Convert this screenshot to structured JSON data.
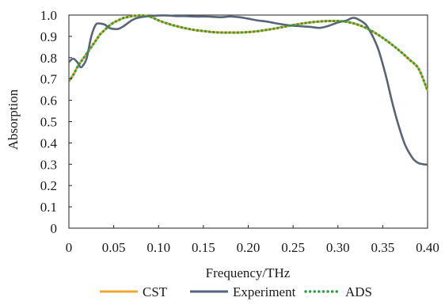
{
  "chart_data": {
    "type": "line",
    "title": "",
    "xlabel": "Frequency/THz",
    "ylabel": "Absorption",
    "xlim": [
      0,
      0.4
    ],
    "ylim": [
      0,
      1.0
    ],
    "x_ticks": [
      "0",
      "0.05",
      "0.10",
      "0.15",
      "0.20",
      "0.25",
      "0.30",
      "0.35",
      "0.40"
    ],
    "y_ticks": [
      "0",
      "0.1",
      "0.2",
      "0.3",
      "0.4",
      "0.5",
      "0.6",
      "0.7",
      "0.8",
      "0.9",
      "1.0"
    ],
    "grid": false,
    "legend_position": "bottom",
    "series": [
      {
        "name": "CST",
        "color": "#f0a830",
        "style": "solid",
        "x": [
          0,
          0.005,
          0.01,
          0.015,
          0.02,
          0.025,
          0.03,
          0.035,
          0.04,
          0.045,
          0.05,
          0.055,
          0.06,
          0.065,
          0.07,
          0.075,
          0.08,
          0.085,
          0.09,
          0.095,
          0.1,
          0.11,
          0.12,
          0.13,
          0.14,
          0.15,
          0.16,
          0.17,
          0.18,
          0.19,
          0.2,
          0.21,
          0.22,
          0.23,
          0.24,
          0.25,
          0.26,
          0.27,
          0.28,
          0.29,
          0.3,
          0.31,
          0.32,
          0.33,
          0.34,
          0.35,
          0.36,
          0.37,
          0.38,
          0.39,
          0.4
        ],
        "y": [
          0.69,
          0.72,
          0.76,
          0.79,
          0.82,
          0.85,
          0.88,
          0.91,
          0.93,
          0.95,
          0.965,
          0.975,
          0.985,
          0.99,
          0.995,
          0.997,
          0.998,
          0.997,
          0.993,
          0.985,
          0.975,
          0.96,
          0.948,
          0.938,
          0.93,
          0.925,
          0.92,
          0.918,
          0.918,
          0.918,
          0.92,
          0.924,
          0.93,
          0.937,
          0.945,
          0.953,
          0.96,
          0.966,
          0.97,
          0.972,
          0.972,
          0.968,
          0.958,
          0.942,
          0.92,
          0.893,
          0.862,
          0.828,
          0.79,
          0.748,
          0.645
        ]
      },
      {
        "name": "Experiment",
        "color": "#5a6478",
        "style": "solid",
        "x": [
          0,
          0.005,
          0.01,
          0.013,
          0.016,
          0.02,
          0.025,
          0.03,
          0.035,
          0.04,
          0.045,
          0.05,
          0.055,
          0.06,
          0.065,
          0.07,
          0.075,
          0.08,
          0.09,
          0.1,
          0.11,
          0.12,
          0.13,
          0.14,
          0.15,
          0.16,
          0.17,
          0.18,
          0.19,
          0.2,
          0.21,
          0.22,
          0.23,
          0.24,
          0.25,
          0.26,
          0.27,
          0.28,
          0.29,
          0.3,
          0.31,
          0.315,
          0.32,
          0.33,
          0.335,
          0.34,
          0.345,
          0.35,
          0.355,
          0.36,
          0.365,
          0.37,
          0.375,
          0.38,
          0.385,
          0.39,
          0.395,
          0.4
        ],
        "y": [
          0.78,
          0.795,
          0.775,
          0.755,
          0.765,
          0.8,
          0.9,
          0.955,
          0.96,
          0.955,
          0.94,
          0.935,
          0.935,
          0.945,
          0.96,
          0.975,
          0.985,
          0.99,
          0.995,
          0.998,
          0.998,
          0.995,
          0.995,
          0.993,
          0.993,
          0.992,
          0.99,
          0.993,
          0.99,
          0.983,
          0.975,
          0.97,
          0.962,
          0.955,
          0.95,
          0.947,
          0.944,
          0.94,
          0.95,
          0.965,
          0.975,
          0.985,
          0.985,
          0.96,
          0.93,
          0.89,
          0.84,
          0.77,
          0.69,
          0.6,
          0.52,
          0.45,
          0.39,
          0.35,
          0.32,
          0.305,
          0.3,
          0.298
        ]
      },
      {
        "name": "ADS",
        "color": "#2e9e45",
        "style": "dotted",
        "x": [
          0,
          0.005,
          0.01,
          0.015,
          0.02,
          0.025,
          0.03,
          0.035,
          0.04,
          0.045,
          0.05,
          0.055,
          0.06,
          0.065,
          0.07,
          0.075,
          0.08,
          0.085,
          0.09,
          0.095,
          0.1,
          0.11,
          0.12,
          0.13,
          0.14,
          0.15,
          0.16,
          0.17,
          0.18,
          0.19,
          0.2,
          0.21,
          0.22,
          0.23,
          0.24,
          0.25,
          0.26,
          0.27,
          0.28,
          0.29,
          0.3,
          0.31,
          0.32,
          0.33,
          0.34,
          0.35,
          0.36,
          0.37,
          0.38,
          0.39,
          0.4
        ],
        "y": [
          0.69,
          0.72,
          0.76,
          0.79,
          0.82,
          0.85,
          0.88,
          0.91,
          0.93,
          0.95,
          0.965,
          0.975,
          0.985,
          0.99,
          0.995,
          0.997,
          0.998,
          0.997,
          0.993,
          0.985,
          0.975,
          0.96,
          0.948,
          0.938,
          0.93,
          0.925,
          0.92,
          0.918,
          0.918,
          0.918,
          0.92,
          0.924,
          0.93,
          0.937,
          0.945,
          0.953,
          0.96,
          0.966,
          0.97,
          0.972,
          0.972,
          0.968,
          0.958,
          0.942,
          0.92,
          0.893,
          0.862,
          0.828,
          0.79,
          0.748,
          0.645
        ]
      }
    ]
  }
}
